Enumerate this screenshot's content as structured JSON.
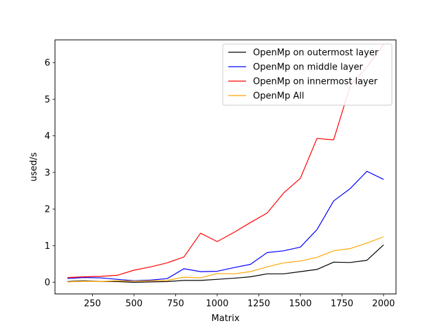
{
  "chart_data": {
    "type": "line",
    "title": "",
    "xlabel": "Matrix",
    "ylabel": "used/s",
    "xlim": [
      25,
      2075
    ],
    "ylim": [
      -0.32,
      6.62
    ],
    "xticks": [
      250,
      500,
      750,
      1000,
      1250,
      1500,
      1750,
      2000
    ],
    "yticks": [
      0,
      1,
      2,
      3,
      4,
      5,
      6
    ],
    "grid": false,
    "legend_position": "top-right",
    "x": [
      100,
      200,
      300,
      400,
      500,
      600,
      700,
      800,
      900,
      1000,
      1100,
      1200,
      1300,
      1400,
      1500,
      1600,
      1700,
      1800,
      1900,
      2000
    ],
    "series": [
      {
        "name": "OpenMp on outermost layer",
        "color": "#000000",
        "values": [
          0.02,
          0.04,
          0.02,
          0.02,
          0.0,
          0.01,
          0.02,
          0.05,
          0.05,
          0.08,
          0.11,
          0.15,
          0.23,
          0.23,
          0.29,
          0.35,
          0.55,
          0.54,
          0.6,
          1.02
        ]
      },
      {
        "name": "OpenMp on middle layer",
        "color": "#0000ff",
        "values": [
          0.1,
          0.13,
          0.12,
          0.08,
          0.04,
          0.06,
          0.1,
          0.37,
          0.29,
          0.3,
          0.4,
          0.49,
          0.81,
          0.86,
          0.96,
          1.44,
          2.22,
          2.56,
          3.03,
          2.81
        ]
      },
      {
        "name": "OpenMp on innermost layer",
        "color": "#ff0000",
        "values": [
          0.13,
          0.15,
          0.16,
          0.19,
          0.33,
          0.42,
          0.53,
          0.69,
          1.34,
          1.11,
          1.36,
          1.63,
          1.89,
          2.44,
          2.84,
          3.93,
          3.89,
          5.37,
          5.88,
          6.49
        ]
      },
      {
        "name": "OpenMp All",
        "color": "#ffa500",
        "values": [
          0.01,
          0.03,
          0.02,
          0.04,
          0.03,
          0.04,
          0.05,
          0.14,
          0.12,
          0.24,
          0.23,
          0.29,
          0.42,
          0.53,
          0.58,
          0.68,
          0.86,
          0.92,
          1.07,
          1.24
        ]
      }
    ]
  }
}
